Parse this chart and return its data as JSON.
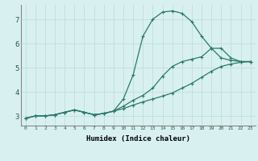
{
  "xlabel": "Humidex (Indice chaleur)",
  "bg_color": "#d8f0f0",
  "line_color": "#2a7a6a",
  "grid_color": "#c0dede",
  "xlim": [
    -0.5,
    23.5
  ],
  "ylim": [
    2.6,
    7.6
  ],
  "yticks": [
    3,
    4,
    5,
    6,
    7
  ],
  "xticks": [
    0,
    1,
    2,
    3,
    4,
    5,
    6,
    7,
    8,
    9,
    10,
    11,
    12,
    13,
    14,
    15,
    16,
    17,
    18,
    19,
    20,
    21,
    22,
    23
  ],
  "line1_x": [
    0,
    1,
    2,
    3,
    4,
    5,
    6,
    7,
    8,
    9,
    10,
    11,
    12,
    13,
    14,
    15,
    16,
    17,
    18,
    19,
    20,
    21,
    22,
    23
  ],
  "line1_y": [
    2.9,
    3.0,
    3.0,
    3.05,
    3.15,
    3.25,
    3.15,
    3.05,
    3.1,
    3.2,
    3.7,
    4.7,
    6.3,
    7.0,
    7.3,
    7.35,
    7.25,
    6.9,
    6.3,
    5.8,
    5.4,
    5.3,
    5.25,
    5.25
  ],
  "line2_x": [
    0,
    1,
    2,
    3,
    4,
    5,
    6,
    7,
    8,
    9,
    10,
    11,
    12,
    13,
    14,
    15,
    16,
    17,
    18,
    19,
    20,
    21,
    22,
    23
  ],
  "line2_y": [
    2.9,
    3.0,
    3.0,
    3.05,
    3.15,
    3.25,
    3.15,
    3.05,
    3.1,
    3.2,
    3.4,
    3.65,
    3.85,
    4.15,
    4.65,
    5.05,
    5.25,
    5.35,
    5.45,
    5.8,
    5.8,
    5.4,
    5.25,
    5.25
  ],
  "line3_x": [
    0,
    1,
    2,
    3,
    4,
    5,
    6,
    7,
    8,
    9,
    10,
    11,
    12,
    13,
    14,
    15,
    16,
    17,
    18,
    19,
    20,
    21,
    22,
    23
  ],
  "line3_y": [
    2.9,
    3.0,
    3.0,
    3.05,
    3.15,
    3.25,
    3.15,
    3.05,
    3.1,
    3.2,
    3.3,
    3.45,
    3.58,
    3.7,
    3.82,
    3.95,
    4.15,
    4.35,
    4.6,
    4.85,
    5.05,
    5.15,
    5.22,
    5.25
  ]
}
